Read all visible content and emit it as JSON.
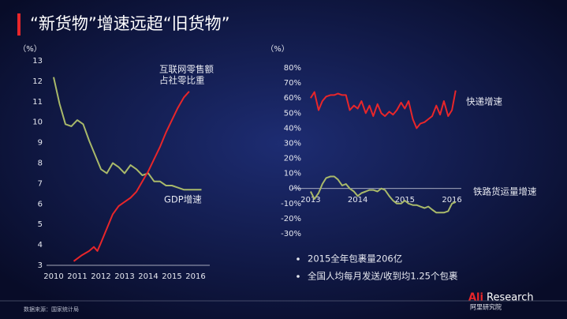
{
  "title": "“新货物”增速远超“旧货物”",
  "source": "数据来源：国家统计局",
  "notes": [
    "2015全年包裹量206亿",
    "全国人均每月发送/收到均1.25个包裹"
  ],
  "logo": {
    "brand": "Ali",
    "name": "Research",
    "cn": "阿里研究院"
  },
  "chart_data": [
    {
      "type": "line",
      "y_unit": "（%）",
      "xlim": [
        2009.7,
        2016.6
      ],
      "xticks": [
        2010,
        2011,
        2012,
        2013,
        2014,
        2015,
        2016
      ],
      "ylim": [
        3,
        13
      ],
      "yticks": [
        3,
        4,
        5,
        6,
        7,
        8,
        9,
        10,
        11,
        12,
        13
      ],
      "series": [
        {
          "name": "GDP增速",
          "color": "#a9b96a",
          "x": [
            2010,
            2010.25,
            2010.5,
            2010.75,
            2011,
            2011.25,
            2011.5,
            2011.75,
            2012,
            2012.25,
            2012.5,
            2012.75,
            2013,
            2013.25,
            2013.5,
            2013.75,
            2014,
            2014.25,
            2014.5,
            2014.75,
            2015,
            2015.25,
            2015.5,
            2015.75,
            2016,
            2016.25
          ],
          "values": [
            12.2,
            10.9,
            9.9,
            9.8,
            10.1,
            9.9,
            9.1,
            8.4,
            7.7,
            7.5,
            8.0,
            7.8,
            7.5,
            7.9,
            7.7,
            7.4,
            7.5,
            7.1,
            7.1,
            6.9,
            6.9,
            6.8,
            6.7,
            6.7,
            6.7,
            6.7
          ]
        },
        {
          "label_lines": [
            "互联网零售额",
            "占社零比重"
          ],
          "color": "#e8262a",
          "x": [
            2010.85,
            2011.2,
            2011.5,
            2011.7,
            2011.85,
            2012,
            2012.25,
            2012.5,
            2012.75,
            2013,
            2013.25,
            2013.5,
            2013.75,
            2014,
            2014.25,
            2014.5,
            2014.75,
            2015,
            2015.25,
            2015.5,
            2015.73
          ],
          "values": [
            3.2,
            3.5,
            3.7,
            3.9,
            3.7,
            4.1,
            4.8,
            5.5,
            5.9,
            6.1,
            6.3,
            6.6,
            7.1,
            7.6,
            8.2,
            8.8,
            9.5,
            10.1,
            10.7,
            11.2,
            11.5
          ]
        }
      ]
    },
    {
      "type": "line",
      "y_unit": "（%）",
      "xlim": [
        2012.6,
        2016.2
      ],
      "xticks": [
        2013,
        2014,
        2015,
        2016
      ],
      "ylim": [
        -30,
        80
      ],
      "yticks": [
        {
          "value": -30,
          "label": "-30%"
        },
        {
          "value": -20,
          "label": "-20%"
        },
        {
          "value": -10,
          "label": "-10%"
        },
        {
          "value": 0,
          "label": "0%"
        },
        {
          "value": 10,
          "label": "10%"
        },
        {
          "value": 20,
          "label": "20%"
        },
        {
          "value": 30,
          "label": "30%"
        },
        {
          "value": 40,
          "label": "40%"
        },
        {
          "value": 50,
          "label": "50%"
        },
        {
          "value": 60,
          "label": "60%"
        },
        {
          "value": 70,
          "label": "70%"
        },
        {
          "value": 80,
          "label": "80%"
        }
      ],
      "series": [
        {
          "name": "快递增速",
          "color": "#e8262a",
          "x": [
            2013,
            2013.08,
            2013.17,
            2013.25,
            2013.33,
            2013.42,
            2013.5,
            2013.58,
            2013.67,
            2013.75,
            2013.83,
            2013.92,
            2014,
            2014.08,
            2014.17,
            2014.25,
            2014.33,
            2014.42,
            2014.5,
            2014.58,
            2014.67,
            2014.75,
            2014.83,
            2014.92,
            2015,
            2015.08,
            2015.17,
            2015.25,
            2015.33,
            2015.42,
            2015.5,
            2015.58,
            2015.67,
            2015.75,
            2015.83,
            2015.92,
            2016,
            2016.08
          ],
          "values": [
            60,
            64,
            52,
            58,
            61,
            62,
            62,
            63,
            62,
            62,
            52,
            55,
            53,
            58,
            50,
            55,
            48,
            56,
            50,
            48,
            51,
            49,
            52,
            57,
            53,
            58,
            46,
            40,
            43,
            44,
            46,
            48,
            55,
            49,
            58,
            48,
            52,
            65
          ]
        },
        {
          "name": "铁路货运量增速",
          "color": "#a9b96a",
          "x": [
            2013,
            2013.08,
            2013.17,
            2013.25,
            2013.33,
            2013.42,
            2013.5,
            2013.58,
            2013.67,
            2013.75,
            2013.83,
            2013.92,
            2014,
            2014.08,
            2014.17,
            2014.25,
            2014.33,
            2014.42,
            2014.5,
            2014.58,
            2014.67,
            2014.75,
            2014.83,
            2014.92,
            2015,
            2015.08,
            2015.17,
            2015.25,
            2015.33,
            2015.42,
            2015.5,
            2015.58,
            2015.67,
            2015.75,
            2015.83,
            2015.92,
            2016,
            2016.08
          ],
          "values": [
            -2,
            -7,
            -3,
            3,
            7,
            8,
            8,
            6,
            2,
            3,
            0,
            -2,
            -5,
            -3,
            -2,
            -1,
            -1,
            -2,
            0,
            -1,
            -5,
            -8,
            -10,
            -10,
            -8,
            -10,
            -11,
            -11,
            -12,
            -13,
            -12,
            -14,
            -16,
            -16,
            -16,
            -15,
            -10,
            -9
          ]
        }
      ]
    }
  ]
}
